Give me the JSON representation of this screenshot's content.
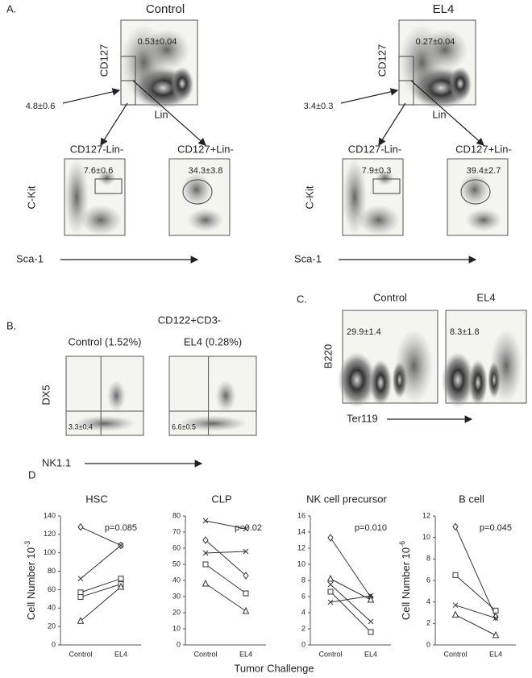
{
  "panel_a": {
    "label": "A.",
    "groups": [
      {
        "title": "Control",
        "top_y": "CD127",
        "top_x": "Lin",
        "top_gate": "0.53±0.04",
        "arrow_value": "4.8±0.6",
        "sub_left": "CD127-Lin-",
        "sub_right": "CD127+Lin-",
        "sub_y": "C-Kit",
        "sub_x": "Sca-1",
        "left_gate": "7.6±0.6",
        "right_gate": "34.3±3.8"
      },
      {
        "title": "EL4",
        "top_y": "CD127",
        "top_x": "Lin",
        "top_gate": "0.27±0.04",
        "arrow_value": "3.4±0.3",
        "sub_left": "CD127-Lin-",
        "sub_right": "CD127+Lin-",
        "sub_y": "C-Kit",
        "sub_x": "Sca-1",
        "left_gate": "7.9±0.3",
        "right_gate": "39.4±2.7"
      }
    ]
  },
  "panel_b": {
    "label": "B.",
    "title": "CD122+CD3-",
    "y_label": "DX5",
    "x_label": "NK1.1",
    "plots": [
      {
        "title": "Control (1.52%)",
        "gate": "3.3±0.4"
      },
      {
        "title": "EL4 (0.28%)",
        "gate": "6.6±0.5"
      }
    ]
  },
  "panel_c": {
    "label": "C.",
    "y_label": "B220",
    "x_label": "Ter119",
    "plots": [
      {
        "title": "Control",
        "gate": "29.9±1.4"
      },
      {
        "title": "EL4",
        "gate": "8.3±1.8"
      }
    ]
  },
  "panel_d": {
    "label": "D",
    "x_label": "Tumor Challenge"
  },
  "chart_data": [
    {
      "type": "line",
      "title": "HSC",
      "annotation": "p=0.085",
      "ylabel": "Cell Number 10",
      "ylabel_exponent": "-3",
      "categories": [
        "Control",
        "EL4"
      ],
      "ylim": [
        0,
        140
      ],
      "yticks": [
        0,
        20,
        40,
        60,
        80,
        100,
        120,
        140
      ],
      "series": [
        {
          "color": "#333333",
          "marker": "diamond",
          "values": [
            128,
            108
          ]
        },
        {
          "color": "#333333",
          "marker": "x",
          "values": [
            72,
            108
          ]
        },
        {
          "color": "#333333",
          "marker": "square",
          "values": [
            57,
            72
          ]
        },
        {
          "color": "#333333",
          "marker": "square",
          "values": [
            52,
            66
          ]
        },
        {
          "color": "#333333",
          "marker": "triangle",
          "values": [
            26,
            63
          ]
        }
      ]
    },
    {
      "type": "line",
      "title": "CLP",
      "annotation": "p=0.02",
      "categories": [
        "Control",
        "EL4"
      ],
      "ylim": [
        0,
        80
      ],
      "yticks": [
        0,
        10,
        20,
        30,
        40,
        50,
        60,
        70,
        80
      ],
      "series": [
        {
          "color": "#333333",
          "marker": "x",
          "values": [
            77,
            72
          ]
        },
        {
          "color": "#333333",
          "marker": "diamond",
          "values": [
            65,
            43
          ]
        },
        {
          "color": "#333333",
          "marker": "x",
          "values": [
            57,
            58
          ]
        },
        {
          "color": "#333333",
          "marker": "square",
          "values": [
            50,
            32
          ]
        },
        {
          "color": "#333333",
          "marker": "triangle",
          "values": [
            38,
            21
          ]
        }
      ]
    },
    {
      "type": "line",
      "title": "NK cell precursor",
      "annotation": "p=0.010",
      "categories": [
        "Control",
        "EL4"
      ],
      "ylim": [
        0,
        16
      ],
      "yticks": [
        0,
        2,
        4,
        6,
        8,
        10,
        12,
        14,
        16
      ],
      "series": [
        {
          "color": "#333333",
          "marker": "diamond",
          "values": [
            13.3,
            5.9
          ]
        },
        {
          "color": "#333333",
          "marker": "triangle",
          "values": [
            8.2,
            5.6
          ]
        },
        {
          "color": "#333333",
          "marker": "x",
          "values": [
            7.5,
            2.9
          ]
        },
        {
          "color": "#333333",
          "marker": "square",
          "values": [
            6.6,
            1.6
          ]
        },
        {
          "color": "#333333",
          "marker": "x",
          "values": [
            5.3,
            6.1
          ]
        }
      ]
    },
    {
      "type": "line",
      "title": "B cell",
      "annotation": "p=0.045",
      "ylabel": "Cell Number 10",
      "ylabel_exponent": "-6",
      "categories": [
        "Control",
        "EL4"
      ],
      "ylim": [
        0,
        12
      ],
      "yticks": [
        0,
        2,
        4,
        6,
        8,
        10,
        12
      ],
      "series": [
        {
          "color": "#333333",
          "marker": "diamond",
          "values": [
            11,
            2.6
          ]
        },
        {
          "color": "#333333",
          "marker": "square",
          "values": [
            6.5,
            3.2
          ]
        },
        {
          "color": "#333333",
          "marker": "x",
          "values": [
            3.7,
            2.5
          ]
        },
        {
          "color": "#333333",
          "marker": "triangle",
          "values": [
            2.8,
            0.9
          ]
        }
      ]
    }
  ]
}
